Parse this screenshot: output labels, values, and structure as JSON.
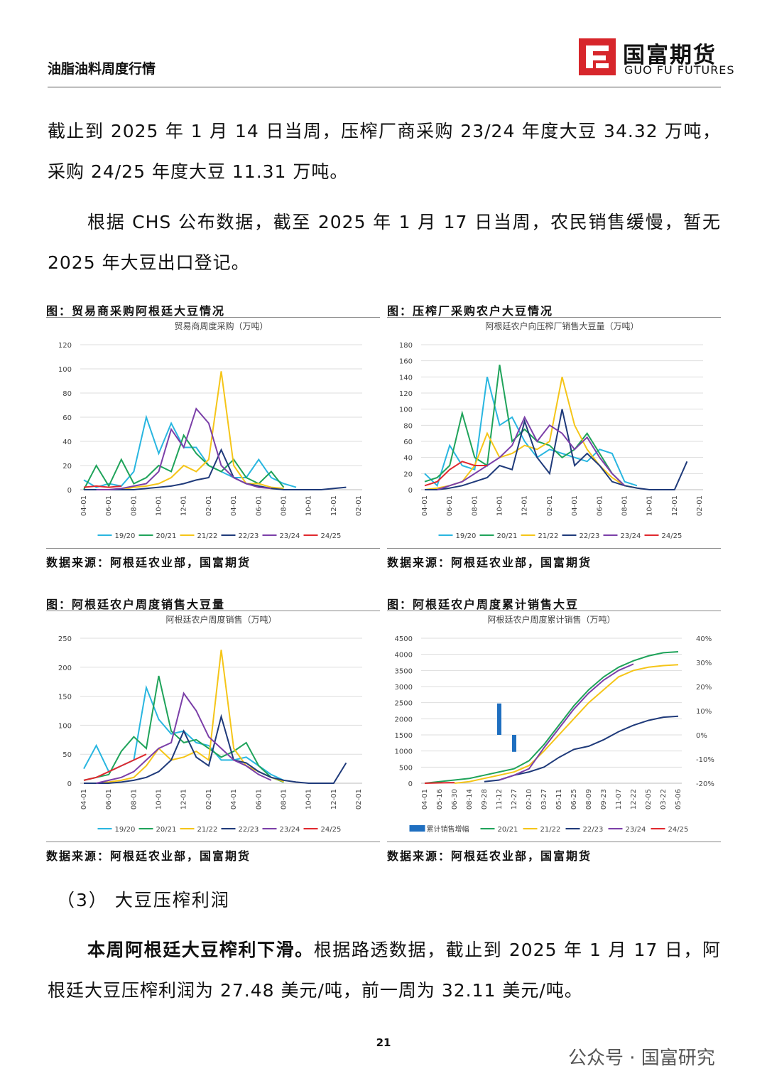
{
  "header": {
    "title": "油脂油料周度行情",
    "logo_cn": "国富期货",
    "logo_en": "GUO FU FUTURES"
  },
  "paragraphs": [
    "截止到 2025 年 1 月 14 日当周，压榨厂商采购 23/24 年度大豆 34.32 万吨，采购 24/25 年度大豆 11.31 万吨。",
    "根据 CHS 公布数据，截至 2025 年 1 月 17 日当周，农民销售缓慢，暂无 2025 年大豆出口登记。"
  ],
  "figures": [
    {
      "caption": "图：贸易商采购阿根廷大豆情况",
      "source": "数据来源：阿根廷农业部，国富期货",
      "chart_data": {
        "type": "line",
        "title": "贸易商周度采购（万吨）",
        "categories": [
          "04-01",
          null,
          "06-01",
          null,
          "08-01",
          null,
          "10-01",
          null,
          "12-01",
          null,
          "02-01",
          null,
          "04-01",
          null,
          "06-01",
          null,
          "08-01",
          null,
          "10-01",
          null,
          "12-01",
          null,
          "02-01"
        ],
        "ylim": [
          0,
          120
        ],
        "yticks": [
          0,
          20,
          40,
          60,
          80,
          100,
          120
        ],
        "grid": true,
        "series": [
          {
            "name": "19/20",
            "color": "#29b6e0",
            "values": [
              8,
              2,
              5,
              3,
              15,
              60,
              30,
              55,
              35,
              35,
              20,
              15,
              10,
              10,
              25,
              10,
              5,
              2,
              null,
              null,
              null,
              null,
              null
            ]
          },
          {
            "name": "20/21",
            "color": "#1fa35a",
            "values": [
              0,
              20,
              3,
              25,
              5,
              10,
              20,
              15,
              45,
              30,
              20,
              15,
              25,
              10,
              5,
              15,
              2,
              null,
              null,
              null,
              null,
              null,
              null
            ]
          },
          {
            "name": "21/22",
            "color": "#f5c518",
            "values": [
              0,
              0,
              0,
              0,
              2,
              3,
              5,
              10,
              20,
              15,
              25,
              98,
              20,
              5,
              5,
              2,
              1,
              null,
              null,
              null,
              null,
              null,
              null
            ]
          },
          {
            "name": "22/23",
            "color": "#1f3a7a",
            "values": [
              0,
              0,
              0,
              0,
              0,
              1,
              2,
              3,
              5,
              8,
              10,
              33,
              10,
              5,
              3,
              1,
              0,
              0,
              0,
              0,
              1,
              2,
              null
            ]
          },
          {
            "name": "23/24",
            "color": "#7b3fa8",
            "values": [
              null,
              0,
              0,
              1,
              3,
              5,
              15,
              50,
              35,
              67,
              55,
              20,
              10,
              5,
              2,
              1,
              null,
              null,
              null,
              null,
              null,
              null,
              null
            ]
          },
          {
            "name": "24/25",
            "color": "#e0282e",
            "values": [
              2,
              3,
              2,
              3,
              null,
              null,
              null,
              null,
              null,
              null,
              null,
              null,
              null,
              null,
              null,
              null,
              null,
              null,
              null,
              null,
              null,
              null,
              null
            ]
          }
        ]
      }
    },
    {
      "caption": "图：压榨厂采购农户大豆情况",
      "source": "数据来源：阿根廷农业部，国富期货",
      "chart_data": {
        "type": "line",
        "title": "阿根廷农户向压榨厂销售大豆量（万吨）",
        "categories": [
          "04-01",
          null,
          "06-01",
          null,
          "08-01",
          null,
          "10-01",
          null,
          "12-01",
          null,
          "02-01",
          null,
          "04-01",
          null,
          "06-01",
          null,
          "08-01",
          null,
          "10-01",
          null,
          "12-01",
          null,
          "02-01"
        ],
        "ylim": [
          0,
          180
        ],
        "yticks": [
          0,
          20,
          40,
          60,
          80,
          100,
          120,
          140,
          160,
          180
        ],
        "grid": true,
        "series": [
          {
            "name": "19/20",
            "color": "#29b6e0",
            "values": [
              20,
              5,
              55,
              30,
              25,
              140,
              80,
              90,
              60,
              40,
              50,
              45,
              40,
              35,
              50,
              45,
              10,
              5,
              null,
              null,
              null,
              null,
              null
            ]
          },
          {
            "name": "20/21",
            "color": "#1fa35a",
            "values": [
              10,
              15,
              30,
              95,
              40,
              30,
              155,
              60,
              75,
              60,
              55,
              40,
              50,
              70,
              45,
              20,
              5,
              null,
              null,
              null,
              null,
              null,
              null
            ]
          },
          {
            "name": "21/22",
            "color": "#f5c518",
            "values": [
              0,
              2,
              5,
              10,
              30,
              70,
              40,
              45,
              55,
              50,
              60,
              140,
              80,
              50,
              30,
              15,
              5,
              2,
              null,
              null,
              null,
              null,
              null
            ]
          },
          {
            "name": "22/23",
            "color": "#1f3a7a",
            "values": [
              0,
              0,
              2,
              5,
              10,
              15,
              30,
              25,
              85,
              40,
              20,
              100,
              30,
              45,
              30,
              10,
              5,
              2,
              0,
              0,
              0,
              35,
              null
            ]
          },
          {
            "name": "23/24",
            "color": "#7b3fa8",
            "values": [
              null,
              0,
              5,
              10,
              20,
              30,
              40,
              55,
              90,
              60,
              80,
              70,
              50,
              65,
              40,
              20,
              5,
              null,
              null,
              null,
              null,
              null,
              null
            ]
          },
          {
            "name": "24/25",
            "color": "#e0282e",
            "values": [
              5,
              10,
              25,
              35,
              30,
              30,
              null,
              null,
              null,
              null,
              null,
              null,
              null,
              null,
              null,
              null,
              null,
              null,
              null,
              null,
              null,
              null,
              null
            ]
          }
        ]
      }
    },
    {
      "caption": "图：阿根廷农户周度销售大豆量",
      "source": "数据来源：阿根廷农业部，国富期货",
      "chart_data": {
        "type": "line",
        "title": "阿根廷农户周度销售（万吨）",
        "categories": [
          "04-01",
          null,
          "06-01",
          null,
          "08-01",
          null,
          "10-01",
          null,
          "12-01",
          null,
          "02-01",
          null,
          "04-01",
          null,
          "06-01",
          null,
          "08-01",
          null,
          "10-01",
          null,
          "12-01",
          null,
          "02-01"
        ],
        "ylim": [
          0,
          250
        ],
        "yticks": [
          0,
          50,
          100,
          150,
          200,
          250
        ],
        "grid": true,
        "series": [
          {
            "name": "19/20",
            "color": "#29b6e0",
            "values": [
              25,
              65,
              20,
              30,
              40,
              165,
              110,
              85,
              90,
              70,
              65,
              40,
              40,
              45,
              30,
              15,
              5,
              null,
              null,
              null,
              null,
              null,
              null
            ]
          },
          {
            "name": "20/21",
            "color": "#1fa35a",
            "values": [
              5,
              10,
              15,
              55,
              80,
              60,
              185,
              90,
              70,
              75,
              60,
              45,
              55,
              70,
              30,
              10,
              2,
              null,
              null,
              null,
              null,
              null,
              null
            ]
          },
          {
            "name": "21/22",
            "color": "#f5c518",
            "values": [
              0,
              0,
              2,
              5,
              10,
              30,
              60,
              40,
              45,
              55,
              40,
              230,
              60,
              30,
              20,
              10,
              3,
              null,
              null,
              null,
              null,
              null,
              null
            ]
          },
          {
            "name": "22/23",
            "color": "#1f3a7a",
            "values": [
              0,
              0,
              0,
              2,
              5,
              10,
              20,
              40,
              90,
              45,
              30,
              115,
              40,
              35,
              20,
              10,
              5,
              2,
              0,
              0,
              0,
              35,
              null
            ]
          },
          {
            "name": "23/24",
            "color": "#7b3fa8",
            "values": [
              null,
              0,
              5,
              10,
              20,
              40,
              60,
              70,
              155,
              125,
              80,
              60,
              40,
              30,
              15,
              5,
              null,
              null,
              null,
              null,
              null,
              null,
              null
            ]
          },
          {
            "name": "24/25",
            "color": "#e0282e",
            "values": [
              5,
              10,
              20,
              30,
              40,
              50,
              null,
              null,
              null,
              null,
              null,
              null,
              null,
              null,
              null,
              null,
              null,
              null,
              null,
              null,
              null,
              null,
              null
            ]
          }
        ]
      }
    },
    {
      "caption": "图：阿根廷农户周度累计销售大豆",
      "source": "数据来源：阿根廷农业部，国富期货",
      "chart_data": {
        "type": "line",
        "title": "阿根廷农户周度累计销售（万吨）",
        "categories": [
          "04-01",
          "05-16",
          "06-30",
          "08-14",
          "09-28",
          "11-12",
          "12-27",
          "02-10",
          "03-27",
          "05-11",
          "06-25",
          "08-09",
          "09-23",
          "11-07",
          "12-22",
          "02-05",
          "03-22",
          "05-06"
        ],
        "ylim": [
          0,
          4500
        ],
        "yticks": [
          0,
          500,
          1000,
          1500,
          2000,
          2500,
          3000,
          3500,
          4000,
          4500
        ],
        "y2lim": [
          -20,
          40
        ],
        "y2ticks": [
          {
            "value": -20,
            "label": "-20%"
          },
          {
            "value": -10,
            "label": "-10%"
          },
          {
            "value": 0,
            "label": "0%"
          },
          {
            "value": 10,
            "label": "10%"
          },
          {
            "value": 20,
            "label": "20%"
          },
          {
            "value": 30,
            "label": "30%"
          },
          {
            "value": 40,
            "label": "40%"
          }
        ],
        "grid": true,
        "series": [
          {
            "name": "累计销售增幅",
            "color": "#1f6fc0",
            "type": "bar",
            "axis": "y2",
            "values": [
              null,
              null,
              null,
              null,
              null,
              13,
              -7,
              null,
              null,
              null,
              null,
              null,
              null,
              null,
              null,
              null,
              null,
              null
            ]
          },
          {
            "name": "20/21",
            "color": "#1fa35a",
            "values": [
              0,
              50,
              100,
              150,
              250,
              350,
              450,
              700,
              1200,
              1800,
              2400,
              2900,
              3300,
              3600,
              3800,
              3950,
              4050,
              4080
            ]
          },
          {
            "name": "21/22",
            "color": "#f5c518",
            "values": [
              null,
              null,
              0,
              50,
              150,
              250,
              350,
              550,
              1000,
              1500,
              2000,
              2500,
              2900,
              3300,
              3500,
              3600,
              3650,
              3680
            ]
          },
          {
            "name": "22/23",
            "color": "#1f3a7a",
            "values": [
              null,
              null,
              null,
              null,
              50,
              100,
              250,
              350,
              500,
              800,
              1050,
              1150,
              1350,
              1600,
              1800,
              1950,
              2050,
              2080
            ]
          },
          {
            "name": "23/24",
            "color": "#7b3fa8",
            "values": [
              null,
              null,
              null,
              null,
              null,
              100,
              250,
              450,
              1100,
              1700,
              2300,
              2800,
              3200,
              3500,
              3700,
              null,
              null,
              null
            ]
          },
          {
            "name": "24/25",
            "color": "#e0282e",
            "values": [
              0,
              10,
              20,
              null,
              null,
              null,
              null,
              null,
              null,
              null,
              null,
              null,
              null,
              null,
              null,
              null,
              null,
              null
            ]
          }
        ]
      }
    }
  ],
  "section": "（3）  大豆压榨利润",
  "paragraph3": {
    "bold": "本周阿根廷大豆榨利下滑。",
    "text": "根据路透数据，截止到 2025 年 1 月 17 日，阿根廷大豆压榨利润为 27.48 美元/吨，前一周为 32.11 美元/吨。"
  },
  "page_number": "21",
  "watermark": "公众号 · 国富研究"
}
